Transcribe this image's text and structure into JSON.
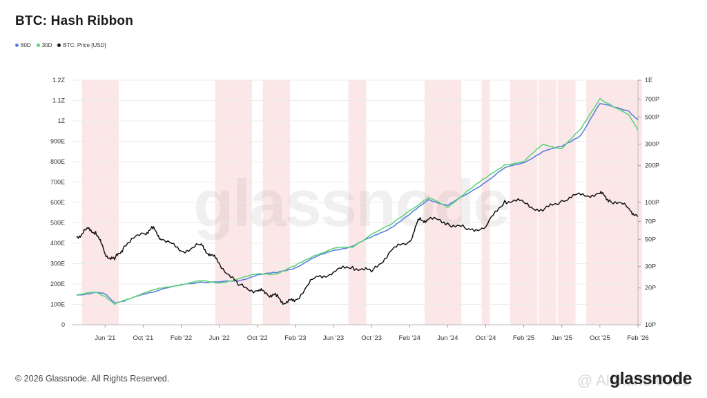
{
  "header": {
    "title": "BTC: Hash Ribbon"
  },
  "legend": [
    {
      "label": "60D",
      "color": "#5b7fe0"
    },
    {
      "label": "30D",
      "color": "#5fd47a"
    },
    {
      "label": "BTC: Price [USD]",
      "color": "#111111"
    }
  ],
  "footer": {
    "copyright": "© 2026 Glassnode. All Rights Reserved.",
    "brand": "glassnode",
    "background_watermark": "glassnode",
    "user_watermark": "@ Alexandr0081"
  },
  "chart_data": {
    "type": "line",
    "title": "BTC: Hash Ribbon",
    "x_ticks": [
      "Jun '21",
      "Oct '21",
      "Feb '22",
      "Jun '22",
      "Oct '22",
      "Feb '23",
      "Jun '23",
      "Oct '23",
      "Feb '24",
      "Jun '24",
      "Oct '24",
      "Feb '25",
      "Jun '25",
      "Oct '25",
      "Feb '26"
    ],
    "x_range": [
      "2021-03",
      "2026-02"
    ],
    "y_left": {
      "ticks": [
        "0",
        "100E",
        "200E",
        "300E",
        "400E",
        "500E",
        "600E",
        "700E",
        "800E",
        "900E",
        "1Z",
        "1.1Z",
        "1.2Z"
      ],
      "range_EH": [
        0,
        1200
      ]
    },
    "y_right": {
      "scale": "log",
      "ticks": [
        "10P",
        "20P",
        "30P",
        "50P",
        "70P",
        "100P",
        "200P",
        "300P",
        "500P",
        "700P",
        "1E"
      ],
      "range": [
        10,
        1000
      ]
    },
    "capitulation_bands": [
      [
        "2021-04",
        "2021-07"
      ],
      [
        "2022-06",
        "2022-09"
      ],
      [
        "2022-11",
        "2023-01"
      ],
      [
        "2023-08",
        "2023-09"
      ],
      [
        "2024-04",
        "2024-07"
      ],
      [
        "2024-10",
        "2024-10"
      ],
      [
        "2025-01",
        "2025-03"
      ],
      [
        "2025-04",
        "2025-05"
      ],
      [
        "2025-06",
        "2025-07"
      ],
      [
        "2025-09",
        "2026-02"
      ]
    ],
    "series": [
      {
        "name": "60D",
        "color": "#5b7fe0",
        "x": [
          "2021-03",
          "2021-05",
          "2021-06",
          "2021-07",
          "2021-08",
          "2021-10",
          "2021-12",
          "2022-02",
          "2022-04",
          "2022-06",
          "2022-08",
          "2022-10",
          "2022-12",
          "2023-02",
          "2023-04",
          "2023-06",
          "2023-08",
          "2023-10",
          "2023-12",
          "2024-02",
          "2024-04",
          "2024-06",
          "2024-08",
          "2024-10",
          "2024-12",
          "2025-02",
          "2025-04",
          "2025-06",
          "2025-08",
          "2025-10",
          "2026-01",
          "2026-02"
        ],
        "values": [
          145,
          160,
          150,
          110,
          115,
          150,
          175,
          195,
          210,
          210,
          215,
          245,
          255,
          280,
          330,
          365,
          385,
          430,
          475,
          540,
          615,
          585,
          640,
          700,
          770,
          795,
          850,
          875,
          930,
          1085,
          1050,
          1005
        ]
      },
      {
        "name": "30D",
        "color": "#5fd47a",
        "x": [
          "2021-03",
          "2021-05",
          "2021-06",
          "2021-07",
          "2021-08",
          "2021-10",
          "2021-12",
          "2022-02",
          "2022-04",
          "2022-06",
          "2022-08",
          "2022-10",
          "2022-12",
          "2023-02",
          "2023-04",
          "2023-06",
          "2023-08",
          "2023-10",
          "2023-12",
          "2024-02",
          "2024-04",
          "2024-06",
          "2024-08",
          "2024-10",
          "2024-12",
          "2025-02",
          "2025-04",
          "2025-06",
          "2025-08",
          "2025-10",
          "2026-01",
          "2026-02"
        ],
        "values": [
          145,
          160,
          140,
          100,
          120,
          155,
          180,
          198,
          215,
          205,
          225,
          250,
          250,
          290,
          340,
          375,
          380,
          445,
          490,
          560,
          625,
          575,
          655,
          720,
          785,
          800,
          885,
          865,
          960,
          1110,
          1030,
          955
        ]
      },
      {
        "name": "BTC: Price [USD]",
        "color": "#111111",
        "x": [
          "2021-03",
          "2021-04",
          "2021-05",
          "2021-06",
          "2021-07",
          "2021-08",
          "2021-10",
          "2021-11",
          "2021-12",
          "2022-02",
          "2022-04",
          "2022-05",
          "2022-06",
          "2022-08",
          "2022-10",
          "2022-11",
          "2022-12",
          "2023-01",
          "2023-02",
          "2023-04",
          "2023-06",
          "2023-08",
          "2023-10",
          "2023-12",
          "2024-02",
          "2024-03",
          "2024-04",
          "2024-06",
          "2024-08",
          "2024-10",
          "2024-12",
          "2025-02",
          "2025-04",
          "2025-06",
          "2025-08",
          "2025-10",
          "2025-11",
          "2026-01",
          "2026-02"
        ],
        "values": [
          52,
          60,
          58,
          38,
          34,
          44,
          56,
          61,
          50,
          40,
          45,
          38,
          32,
          21,
          19,
          18,
          17,
          15,
          16,
          24,
          27,
          30,
          27,
          40,
          48,
          72,
          73,
          68,
          60,
          63,
          104,
          100,
          85,
          104,
          115,
          118,
          105,
          90,
          77
        ]
      }
    ]
  }
}
